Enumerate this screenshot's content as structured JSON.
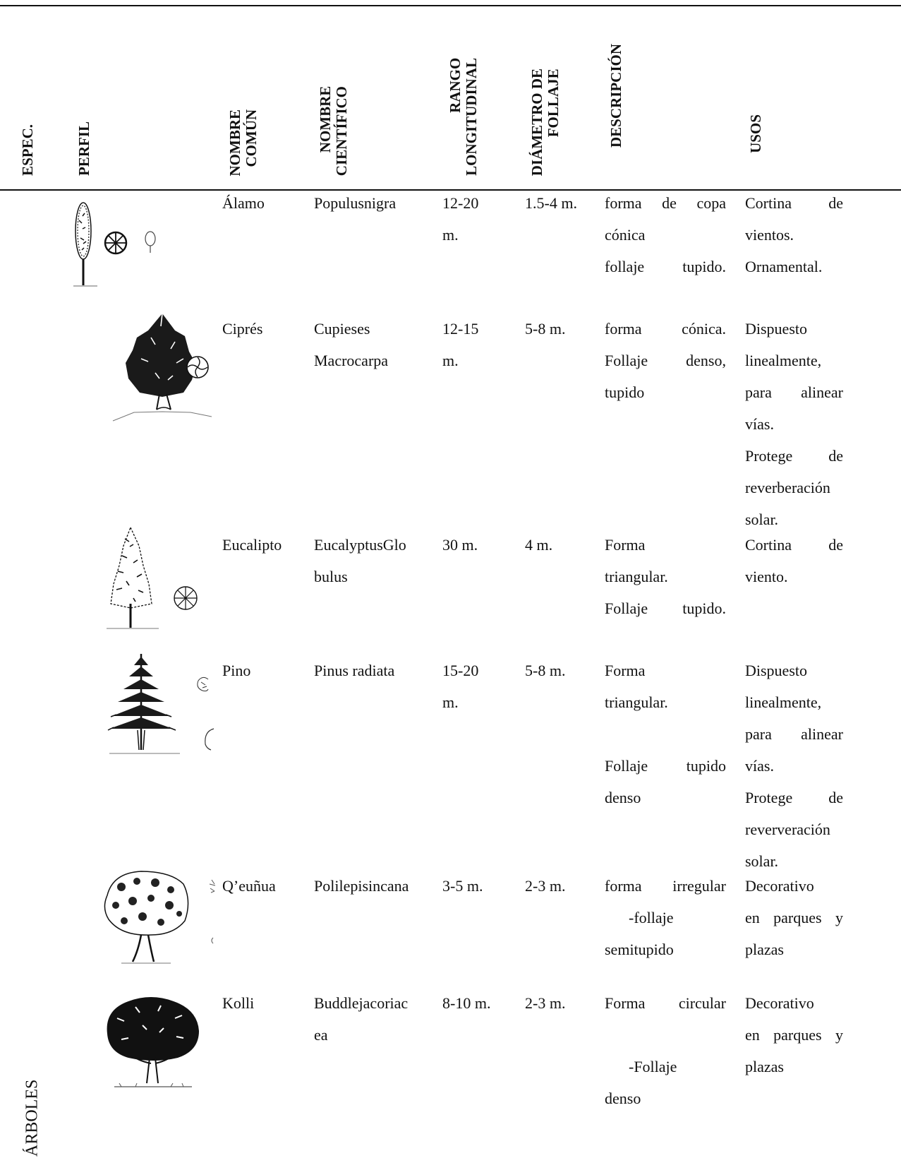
{
  "headers": {
    "espec": "ESPEC.",
    "perfil": "PERFIL",
    "nombre_comun": [
      "NOMBRE",
      "COMÚN"
    ],
    "nombre_cientifico": [
      "NOMBRE",
      "CIENTÍFICO"
    ],
    "rango": [
      "RANGO",
      "LONGITUDINAL"
    ],
    "diametro": [
      "DIÁMETRO DE",
      "FOLLAJE"
    ],
    "descripcion": "DESCRIPCIÓN",
    "usos": "USOS"
  },
  "category": "ÁRBOLES",
  "rows": [
    {
      "icon": "poplar-tree-icon",
      "comun": "Álamo",
      "cientifico": [
        "Populusnigra"
      ],
      "rango": [
        "12-20",
        "m."
      ],
      "diametro": [
        "1.5-4 m."
      ],
      "descripcion": [
        "forma de copa",
        "cónica",
        "follaje tupido."
      ],
      "usos": [
        "Cortina de",
        "vientos.",
        "Ornamental."
      ]
    },
    {
      "icon": "cypress-tree-icon",
      "comun": "Ciprés",
      "cientifico": [
        "Cupieses",
        "Macrocarpa"
      ],
      "rango": [
        "12-15",
        "m."
      ],
      "diametro": [
        "5-8 m."
      ],
      "descripcion": [
        "forma cónica.",
        "Follaje denso,",
        "tupido"
      ],
      "usos": [
        "Dispuesto",
        "linealmente,",
        "para alinear",
        "vías.",
        "Protege de",
        "reverberación",
        "solar."
      ]
    },
    {
      "icon": "eucalyptus-tree-icon",
      "comun": "Eucalipto",
      "cientifico": [
        "EucalyptusGlo",
        "bulus"
      ],
      "rango": [
        "30 m."
      ],
      "diametro": [
        "4 m."
      ],
      "descripcion": [
        "Forma",
        "triangular.",
        "Follaje tupido."
      ],
      "usos": [
        "Cortina de",
        "viento."
      ]
    },
    {
      "icon": "pine-tree-icon",
      "comun": "Pino",
      "cientifico": [
        "Pinus radiata"
      ],
      "rango": [
        "15-20",
        "m."
      ],
      "diametro": [
        "5-8 m."
      ],
      "descripcion": [
        "Forma",
        "triangular.",
        "",
        "Follaje tupido",
        "denso"
      ],
      "usos": [
        "Dispuesto",
        "linealmente,",
        "para alinear",
        "vías.",
        "Protege de",
        "reververación",
        "solar."
      ]
    },
    {
      "icon": "queuna-tree-icon",
      "comun": "Q’euñua",
      "cientifico": [
        "Polilepisincana"
      ],
      "rango": [
        "3-5 m."
      ],
      "diametro": [
        "2-3 m."
      ],
      "descripcion": [
        "forma irregular",
        "-follaje",
        "semitupido"
      ],
      "usos": [
        "Decorativo",
        "en parques y",
        "plazas"
      ]
    },
    {
      "icon": "kolli-tree-icon",
      "comun": "Kolli",
      "cientifico": [
        "Buddlejacoriac",
        "ea"
      ],
      "rango": [
        "8-10 m."
      ],
      "diametro": [
        "2-3 m."
      ],
      "descripcion": [
        "Forma circular",
        "",
        "-Follaje",
        "denso"
      ],
      "usos": [
        "Decorativo",
        "en parques y",
        "plazas"
      ]
    }
  ]
}
